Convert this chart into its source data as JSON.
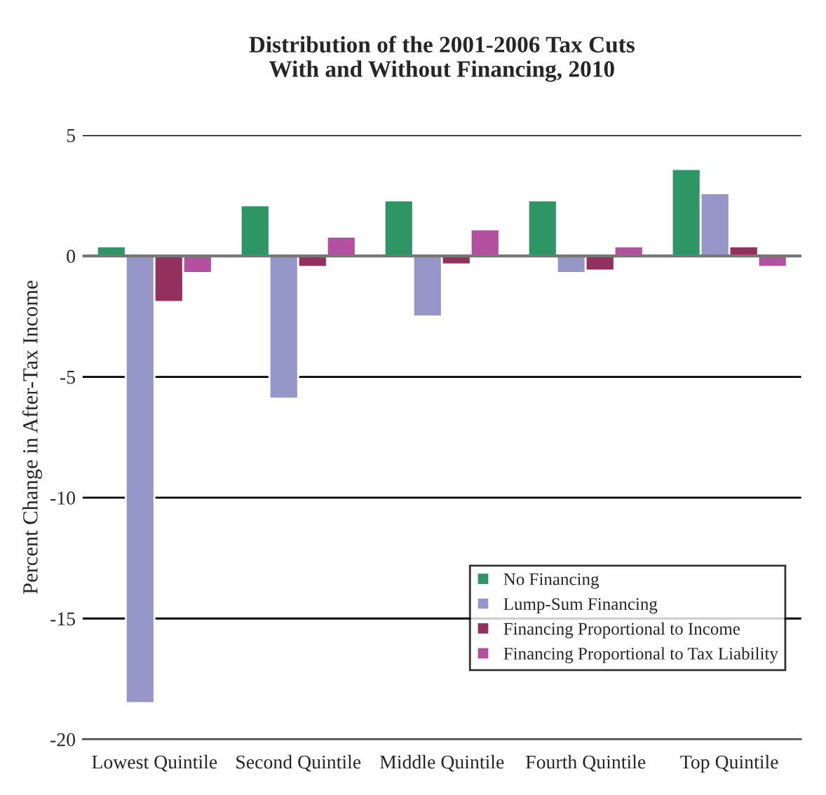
{
  "chart_data": {
    "type": "bar",
    "title": "Distribution of the 2001-2006 Tax Cuts\nWith and Without Financing, 2010",
    "ylabel": "Percent Change in After-Tax Income",
    "categories": [
      "Lowest Quintile",
      "Second Quintile",
      "Middle Quintile",
      "Fourth Quintile",
      "Top Quintile"
    ],
    "series": [
      {
        "name": "No Financing",
        "color": "#2e9665",
        "values": [
          0.4,
          2.1,
          2.3,
          2.3,
          3.6
        ]
      },
      {
        "name": "Lump-Sum Financing",
        "color": "#9696c8",
        "values": [
          -18.5,
          -5.9,
          -2.5,
          -0.7,
          2.6
        ]
      },
      {
        "name": "Financing Proportional to Income",
        "color": "#93305e",
        "values": [
          -1.9,
          -0.45,
          -0.35,
          -0.6,
          0.4
        ]
      },
      {
        "name": "Financing Proportional to Tax Liability",
        "color": "#b450a0",
        "values": [
          -0.7,
          0.8,
          1.1,
          0.4,
          -0.45
        ]
      }
    ],
    "ylim": [
      -20,
      5
    ],
    "yticks": [
      5,
      0,
      {
        "value": -5,
        "label": "-5"
      },
      {
        "value": -10,
        "label": "-10"
      },
      {
        "value": -15,
        "label": "-15"
      },
      {
        "value": -20,
        "label": "-20"
      }
    ],
    "grid": "y",
    "legend": "bottom right"
  }
}
